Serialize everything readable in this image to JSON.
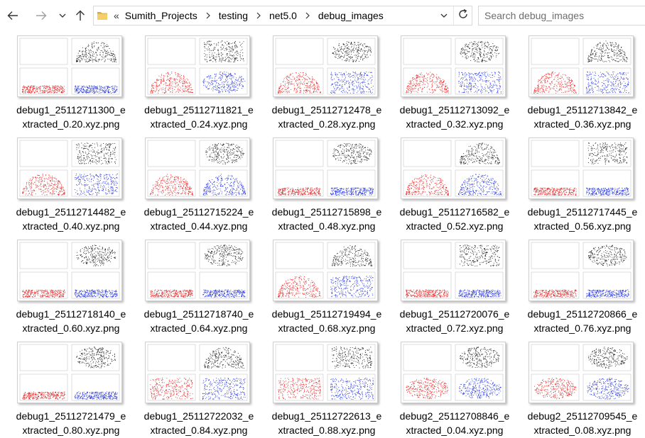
{
  "window": {
    "search_placeholder": "Search debug_images"
  },
  "breadcrumb": {
    "overflow": "«",
    "items": [
      "Sumith_Projects",
      "testing",
      "net5.0",
      "debug_images"
    ]
  },
  "icons": {
    "back": "arrow-left-icon",
    "forward": "arrow-right-icon",
    "recent": "chevron-down-icon",
    "up": "arrow-up-icon",
    "folder": "folder-icon",
    "refresh": "refresh-icon"
  },
  "colors": {
    "folder": "#e8b84a",
    "red_plot": "#e62020",
    "blue_plot": "#2030e0",
    "black_plot": "#1a1a1a"
  },
  "files": [
    {
      "line1": "debug1_25112711300_e",
      "line2": "xtracted_0.20.xyz.png"
    },
    {
      "line1": "debug1_25112711821_e",
      "line2": "xtracted_0.24.xyz.png"
    },
    {
      "line1": "debug1_25112712478_e",
      "line2": "xtracted_0.28.xyz.png"
    },
    {
      "line1": "debug1_25112713092_e",
      "line2": "xtracted_0.32.xyz.png"
    },
    {
      "line1": "debug1_25112713842_e",
      "line2": "xtracted_0.36.xyz.png"
    },
    {
      "line1": "debug1_25112714482_e",
      "line2": "xtracted_0.40.xyz.png"
    },
    {
      "line1": "debug1_25112715224_e",
      "line2": "xtracted_0.44.xyz.png"
    },
    {
      "line1": "debug1_25112715898_e",
      "line2": "xtracted_0.48.xyz.png"
    },
    {
      "line1": "debug1_25112716582_e",
      "line2": "xtracted_0.52.xyz.png"
    },
    {
      "line1": "debug1_25112717445_e",
      "line2": "xtracted_0.56.xyz.png"
    },
    {
      "line1": "debug1_25112718140_e",
      "line2": "xtracted_0.60.xyz.png"
    },
    {
      "line1": "debug1_25112718740_e",
      "line2": "xtracted_0.64.xyz.png"
    },
    {
      "line1": "debug1_25112719494_e",
      "line2": "xtracted_0.68.xyz.png"
    },
    {
      "line1": "debug1_25112720076_e",
      "line2": "xtracted_0.72.xyz.png"
    },
    {
      "line1": "debug1_25112720866_e",
      "line2": "xtracted_0.76.xyz.png"
    },
    {
      "line1": "debug1_25112721479_e",
      "line2": "xtracted_0.80.xyz.png"
    },
    {
      "line1": "debug1_25112722032_e",
      "line2": "xtracted_0.84.xyz.png"
    },
    {
      "line1": "debug1_25112722613_e",
      "line2": "xtracted_0.88.xyz.png"
    },
    {
      "line1": "debug2_25112708846_e",
      "line2": "xtracted_0.04.xyz.png"
    },
    {
      "line1": "debug2_25112709545_e",
      "line2": "xtracted_0.08.xyz.png"
    }
  ]
}
